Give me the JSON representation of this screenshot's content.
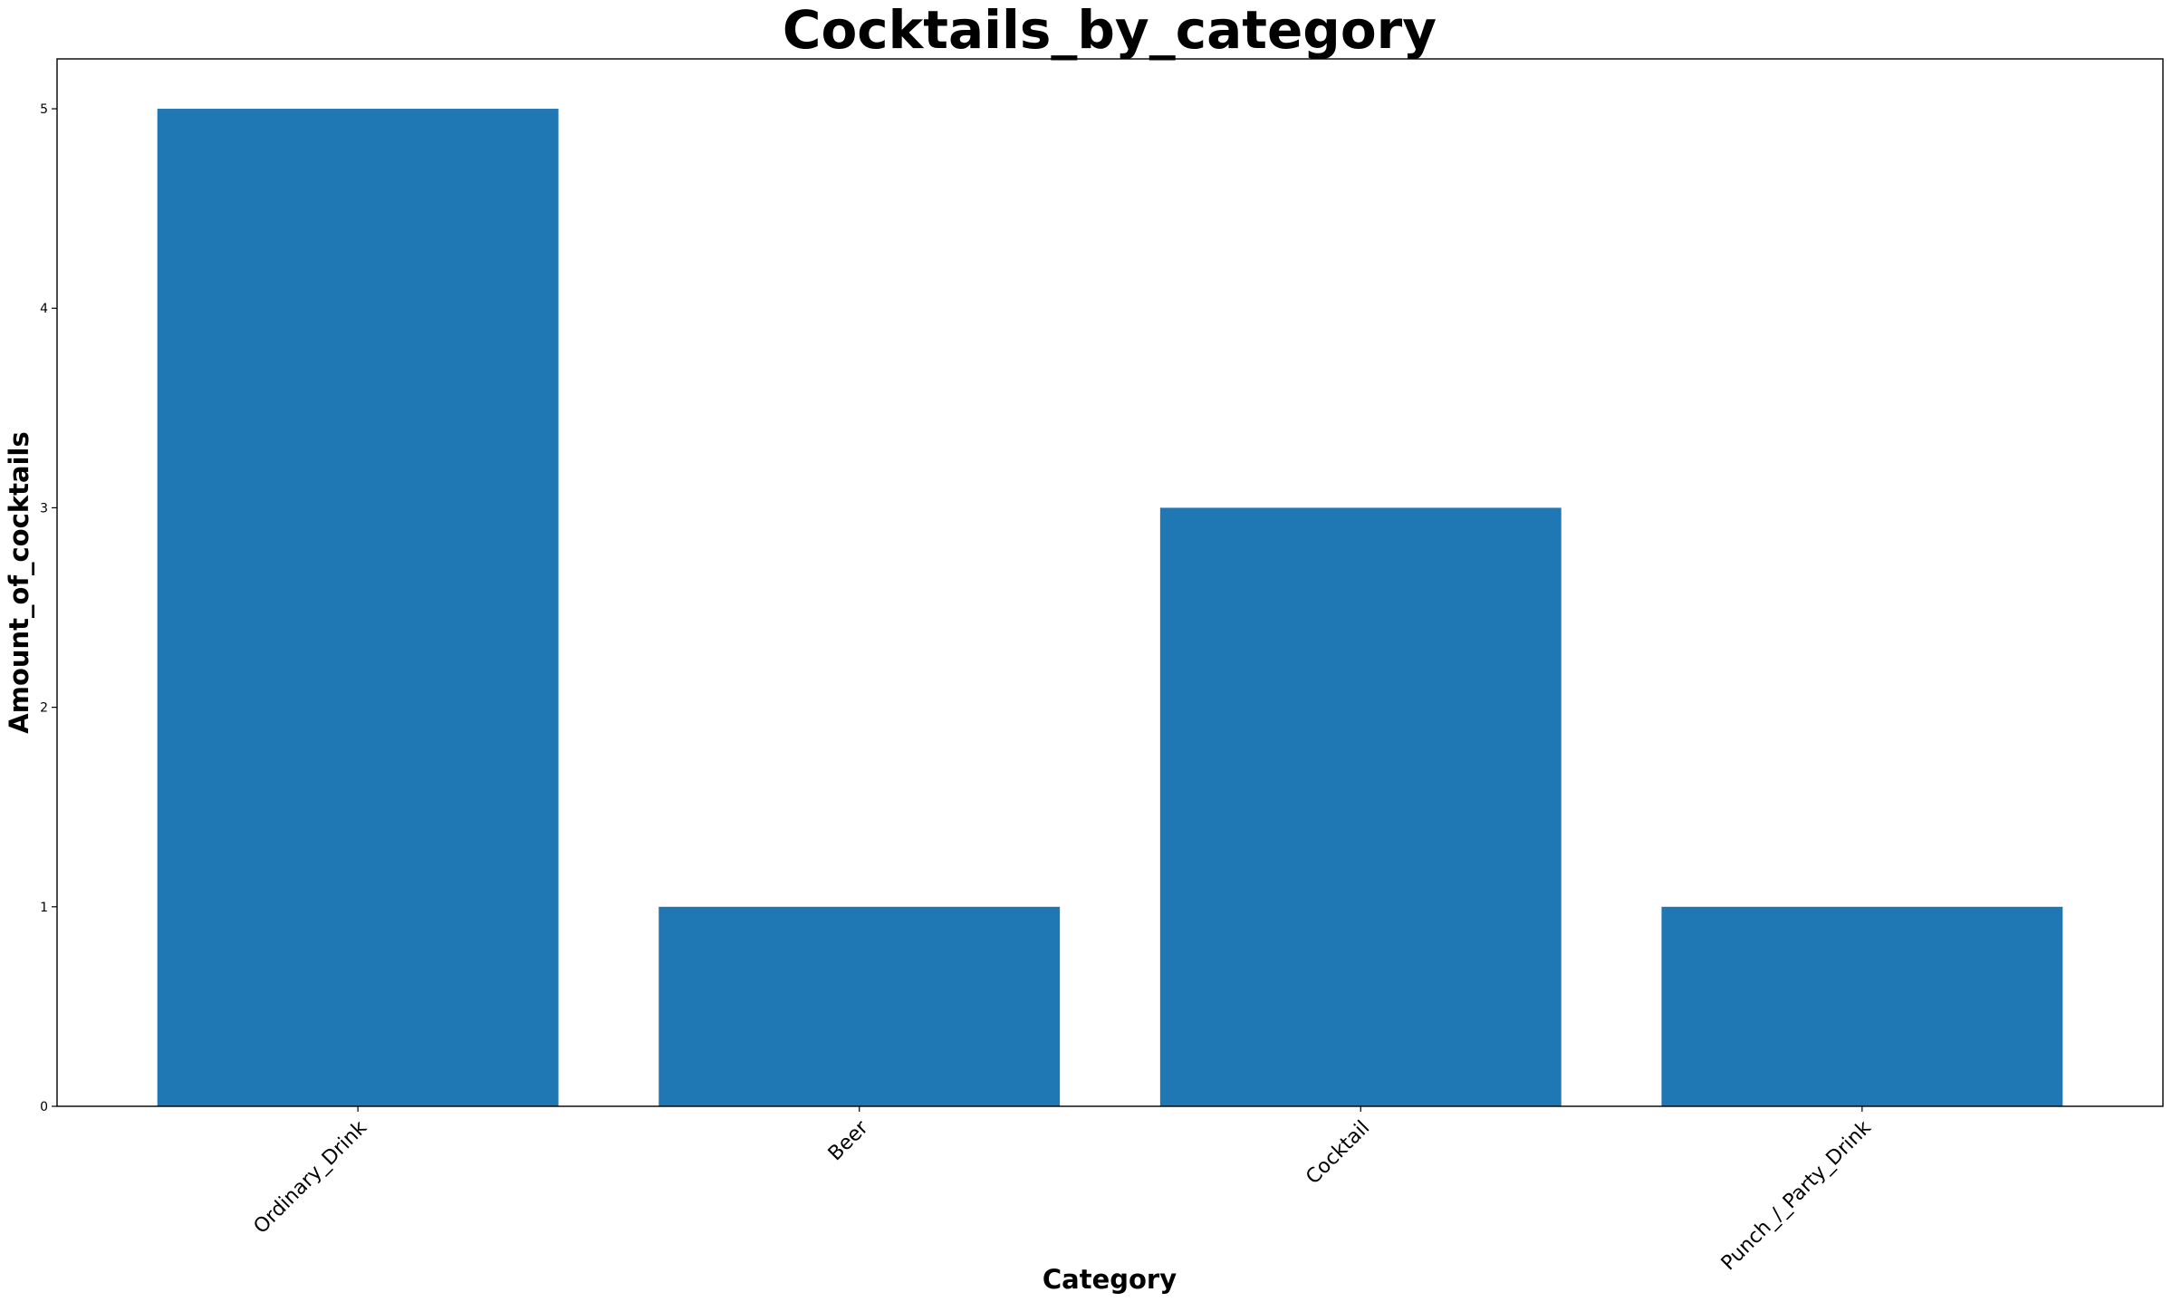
{
  "chart_data": {
    "type": "bar",
    "title": "Cocktails_by_category",
    "xlabel": "Category",
    "ylabel": "Amount_of_cocktails",
    "categories": [
      "Ordinary_Drink",
      "Beer",
      "Cocktail",
      "Punch_/_Party_Drink"
    ],
    "values": [
      5,
      1,
      3,
      1
    ],
    "ylim": [
      0,
      5.25
    ],
    "yticks": [
      0,
      1,
      2,
      3,
      4,
      5
    ],
    "bar_color": "#1f77b4",
    "grid": false,
    "legend": "none"
  }
}
